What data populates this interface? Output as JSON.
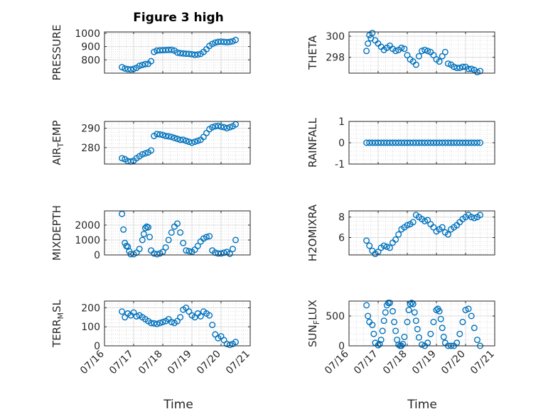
{
  "figure": {
    "title": "Figure 3 high",
    "xlabel": "Time",
    "x_ticklabels": [
      "07/16",
      "07/17",
      "07/18",
      "07/19",
      "07/20",
      "07/21"
    ],
    "marker_color": "#0072BD"
  },
  "chart_data": [
    {
      "type": "scatter",
      "ylabel": "PRESSURE",
      "xlim": [
        0,
        5
      ],
      "ylim": [
        700,
        1010
      ],
      "yticks": [
        800,
        900,
        1000
      ],
      "ytick_labels": [
        "800",
        "900",
        "1000"
      ],
      "grid": true,
      "minor_grid": true,
      "series": [
        {
          "x": [
            0.6,
            0.7,
            0.8,
            0.9,
            1.0,
            1.1,
            1.2,
            1.3,
            1.4,
            1.5,
            1.6,
            1.7,
            1.8,
            1.9,
            2.0,
            2.1,
            2.2,
            2.3,
            2.4,
            2.5,
            2.6,
            2.7,
            2.8,
            2.9,
            3.0,
            3.1,
            3.2,
            3.3,
            3.4,
            3.5,
            3.6,
            3.7,
            3.8,
            3.9,
            4.0,
            4.1,
            4.2,
            4.3,
            4.4,
            4.5
          ],
          "y": [
            745,
            735,
            730,
            728,
            732,
            740,
            755,
            762,
            768,
            770,
            790,
            860,
            870,
            872,
            873,
            874,
            875,
            876,
            870,
            855,
            850,
            848,
            846,
            845,
            842,
            838,
            840,
            845,
            860,
            880,
            905,
            920,
            930,
            935,
            937,
            935,
            933,
            935,
            940,
            950
          ]
        }
      ]
    },
    {
      "type": "scatter",
      "ylabel": "THETA",
      "xlim": [
        0,
        5
      ],
      "ylim": [
        296.5,
        300.4
      ],
      "yticks": [
        298,
        300
      ],
      "ytick_labels": [
        "298",
        "300"
      ],
      "grid": true,
      "minor_grid": true,
      "series": [
        {
          "x": [
            0.6,
            0.65,
            0.7,
            0.75,
            0.8,
            0.9,
            1.0,
            1.1,
            1.2,
            1.3,
            1.4,
            1.5,
            1.6,
            1.7,
            1.8,
            1.9,
            2.0,
            2.1,
            2.2,
            2.3,
            2.4,
            2.5,
            2.6,
            2.7,
            2.8,
            2.9,
            3.0,
            3.1,
            3.2,
            3.3,
            3.4,
            3.5,
            3.6,
            3.7,
            3.8,
            3.9,
            4.0,
            4.1,
            4.2,
            4.3,
            4.4,
            4.5
          ],
          "y": [
            298.6,
            299.3,
            300.1,
            299.8,
            300.3,
            299.6,
            299.3,
            299.0,
            298.7,
            298.9,
            299.1,
            298.8,
            298.6,
            298.7,
            298.9,
            298.8,
            298.2,
            297.8,
            297.6,
            297.3,
            298.1,
            298.6,
            298.7,
            298.6,
            298.5,
            298.2,
            297.8,
            297.6,
            298.1,
            298.5,
            297.4,
            297.3,
            297.1,
            297.0,
            297.0,
            297.1,
            297.1,
            296.9,
            296.9,
            296.8,
            296.6,
            296.7
          ]
        }
      ]
    },
    {
      "type": "scatter",
      "ylabel": "AIR_TEMP",
      "ylabel_main": "AIR",
      "ylabel_sub": "T",
      "ylabel_rest": "EMP",
      "xlim": [
        0,
        5
      ],
      "ylim": [
        271.5,
        293.5
      ],
      "yticks": [
        280,
        290
      ],
      "ytick_labels": [
        "280",
        "290"
      ],
      "grid": true,
      "minor_grid": true,
      "series": [
        {
          "x": [
            0.6,
            0.7,
            0.8,
            0.9,
            1.0,
            1.1,
            1.2,
            1.3,
            1.4,
            1.5,
            1.6,
            1.7,
            1.8,
            1.9,
            2.0,
            2.1,
            2.2,
            2.3,
            2.4,
            2.5,
            2.6,
            2.7,
            2.8,
            2.9,
            3.0,
            3.1,
            3.2,
            3.3,
            3.4,
            3.5,
            3.6,
            3.7,
            3.8,
            3.9,
            4.0,
            4.1,
            4.2,
            4.3,
            4.4,
            4.5
          ],
          "y": [
            274.5,
            274.0,
            273.0,
            272.8,
            273.2,
            274.5,
            275.5,
            276.5,
            277.0,
            277.5,
            278.5,
            286.0,
            287.0,
            286.8,
            286.5,
            286.0,
            285.8,
            285.5,
            285.0,
            284.5,
            284.0,
            284.0,
            283.5,
            283.0,
            282.5,
            283.0,
            283.5,
            284.0,
            285.5,
            287.5,
            289.5,
            290.5,
            291.0,
            291.2,
            290.8,
            290.5,
            290.0,
            290.5,
            291.0,
            292.0
          ]
        }
      ]
    },
    {
      "type": "scatter",
      "ylabel": "RAINFALL",
      "xlim": [
        0,
        5
      ],
      "ylim": [
        -1,
        1
      ],
      "yticks": [
        -1,
        0,
        1
      ],
      "ytick_labels": [
        "-1",
        "0",
        "1"
      ],
      "grid": true,
      "minor_grid": true,
      "series": [
        {
          "x": [
            0.6,
            0.7,
            0.8,
            0.9,
            1.0,
            1.1,
            1.2,
            1.3,
            1.4,
            1.5,
            1.6,
            1.7,
            1.8,
            1.9,
            2.0,
            2.1,
            2.2,
            2.3,
            2.4,
            2.5,
            2.6,
            2.7,
            2.8,
            2.9,
            3.0,
            3.1,
            3.2,
            3.3,
            3.4,
            3.5,
            3.6,
            3.7,
            3.8,
            3.9,
            4.0,
            4.1,
            4.2,
            4.3,
            4.4,
            4.5
          ],
          "y": [
            0,
            0,
            0,
            0,
            0,
            0,
            0,
            0,
            0,
            0,
            0,
            0,
            0,
            0,
            0,
            0,
            0,
            0,
            0,
            0,
            0,
            0,
            0,
            0,
            0,
            0,
            0,
            0,
            0,
            0,
            0,
            0,
            0,
            0,
            0,
            0,
            0,
            0,
            0,
            0
          ]
        }
      ]
    },
    {
      "type": "scatter",
      "ylabel": "MIXDEPTH",
      "xlim": [
        0,
        5
      ],
      "ylim": [
        0,
        2950
      ],
      "yticks": [
        0,
        1000,
        2000
      ],
      "ytick_labels": [
        "0",
        "1000",
        "2000"
      ],
      "grid": true,
      "minor_grid": true,
      "series": [
        {
          "x": [
            0.6,
            0.65,
            0.7,
            0.75,
            0.8,
            0.85,
            0.9,
            1.0,
            1.1,
            1.2,
            1.3,
            1.35,
            1.4,
            1.45,
            1.5,
            1.55,
            1.6,
            1.7,
            1.8,
            1.9,
            2.0,
            2.1,
            2.2,
            2.3,
            2.4,
            2.5,
            2.6,
            2.7,
            2.8,
            2.9,
            3.0,
            3.1,
            3.2,
            3.3,
            3.4,
            3.5,
            3.6,
            3.7,
            3.8,
            3.9,
            4.0,
            4.1,
            4.2,
            4.3,
            4.4,
            4.5
          ],
          "y": [
            2750,
            1700,
            800,
            600,
            550,
            250,
            50,
            50,
            150,
            400,
            1000,
            1400,
            1800,
            1900,
            1850,
            1200,
            300,
            100,
            50,
            100,
            200,
            500,
            1000,
            1500,
            1900,
            2100,
            1500,
            800,
            300,
            250,
            200,
            350,
            600,
            900,
            1100,
            1200,
            1250,
            300,
            150,
            100,
            100,
            150,
            200,
            80,
            400,
            1000
          ]
        }
      ]
    },
    {
      "type": "scatter",
      "ylabel": "H2OMIXRA",
      "xlim": [
        0,
        5
      ],
      "ylim": [
        4.3,
        8.6
      ],
      "yticks": [
        6,
        8
      ],
      "ytick_labels": [
        "6",
        "8"
      ],
      "grid": true,
      "minor_grid": true,
      "series": [
        {
          "x": [
            0.6,
            0.7,
            0.8,
            0.9,
            1.0,
            1.1,
            1.2,
            1.3,
            1.4,
            1.5,
            1.6,
            1.7,
            1.8,
            1.9,
            2.0,
            2.1,
            2.2,
            2.3,
            2.4,
            2.5,
            2.6,
            2.7,
            2.8,
            2.9,
            3.0,
            3.1,
            3.2,
            3.3,
            3.4,
            3.5,
            3.6,
            3.7,
            3.8,
            3.9,
            4.0,
            4.1,
            4.2,
            4.3,
            4.4,
            4.5
          ],
          "y": [
            5.7,
            5.2,
            4.7,
            4.4,
            4.6,
            5.0,
            5.2,
            5.1,
            5.0,
            5.5,
            5.8,
            6.3,
            6.8,
            7.0,
            7.2,
            7.3,
            7.5,
            8.2,
            8.0,
            7.8,
            7.6,
            7.7,
            7.3,
            7.0,
            6.6,
            6.8,
            7.0,
            6.5,
            6.3,
            6.8,
            7.0,
            7.2,
            7.5,
            7.8,
            8.0,
            8.2,
            8.0,
            7.9,
            8.0,
            8.2
          ]
        }
      ]
    },
    {
      "type": "scatter",
      "ylabel": "TERR_MSL",
      "ylabel_main": "TERR",
      "ylabel_sub": "M",
      "ylabel_rest": "SL",
      "xlim": [
        0,
        5
      ],
      "ylim": [
        0,
        235
      ],
      "yticks": [
        0,
        100,
        200
      ],
      "ytick_labels": [
        "0",
        "100",
        "200"
      ],
      "grid": true,
      "minor_grid": true,
      "series": [
        {
          "x": [
            0.6,
            0.7,
            0.8,
            0.9,
            1.0,
            1.1,
            1.2,
            1.3,
            1.4,
            1.5,
            1.6,
            1.7,
            1.8,
            1.9,
            2.0,
            2.1,
            2.2,
            2.3,
            2.4,
            2.5,
            2.6,
            2.7,
            2.8,
            2.9,
            3.0,
            3.1,
            3.2,
            3.3,
            3.4,
            3.5,
            3.6,
            3.7,
            3.8,
            3.9,
            4.0,
            4.1,
            4.2,
            4.3,
            4.4,
            4.5
          ],
          "y": [
            180,
            150,
            170,
            160,
            175,
            155,
            160,
            150,
            140,
            130,
            120,
            118,
            115,
            120,
            125,
            130,
            140,
            125,
            120,
            130,
            150,
            190,
            200,
            180,
            160,
            150,
            170,
            155,
            180,
            170,
            160,
            110,
            60,
            40,
            50,
            30,
            10,
            5,
            10,
            20
          ]
        }
      ]
    },
    {
      "type": "scatter",
      "ylabel": "SUN_FLUX",
      "ylabel_main": "SUN",
      "ylabel_sub": "F",
      "ylabel_rest": "LUX",
      "xlim": [
        0,
        5
      ],
      "ylim": [
        0,
        750
      ],
      "yticks": [
        0,
        500
      ],
      "ytick_labels": [
        "0",
        "500"
      ],
      "grid": true,
      "minor_grid": true,
      "series": [
        {
          "x": [
            0.6,
            0.65,
            0.7,
            0.8,
            0.85,
            0.9,
            1.0,
            1.05,
            1.1,
            1.15,
            1.2,
            1.25,
            1.3,
            1.35,
            1.4,
            1.5,
            1.55,
            1.6,
            1.65,
            1.7,
            1.75,
            1.8,
            1.85,
            1.9,
            2.0,
            2.05,
            2.1,
            2.15,
            2.2,
            2.25,
            2.3,
            2.35,
            2.4,
            2.5,
            2.6,
            2.7,
            2.8,
            2.9,
            3.0,
            3.05,
            3.1,
            3.15,
            3.2,
            3.25,
            3.3,
            3.4,
            3.5,
            3.6,
            3.7,
            3.8,
            3.9,
            4.0,
            4.1,
            4.2,
            4.3,
            4.4,
            4.5
          ],
          "y": [
            680,
            500,
            400,
            350,
            200,
            50,
            10,
            30,
            100,
            250,
            420,
            560,
            680,
            720,
            720,
            580,
            400,
            250,
            100,
            20,
            0,
            0,
            30,
            150,
            400,
            600,
            700,
            720,
            700,
            560,
            420,
            280,
            140,
            20,
            0,
            50,
            200,
            400,
            600,
            620,
            580,
            450,
            300,
            150,
            50,
            0,
            0,
            0,
            50,
            200,
            400,
            600,
            620,
            500,
            300,
            100,
            0
          ]
        }
      ]
    }
  ]
}
